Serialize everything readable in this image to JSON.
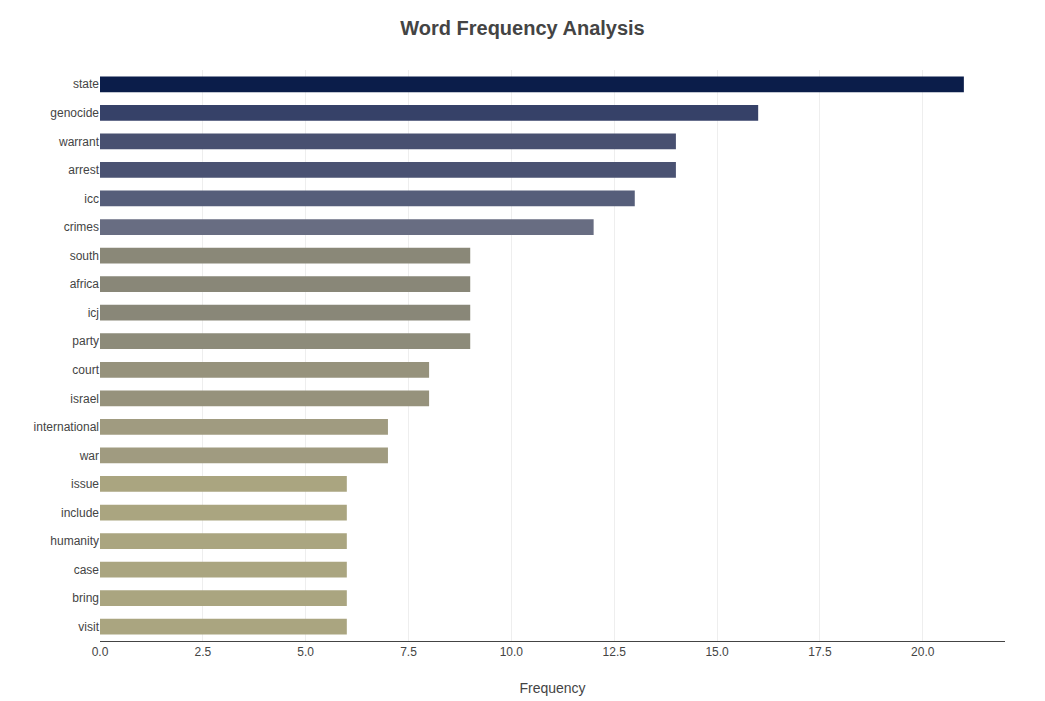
{
  "chart_data": {
    "type": "bar",
    "orientation": "horizontal",
    "title": "Word Frequency Analysis",
    "xlabel": "Frequency",
    "categories": [
      "state",
      "genocide",
      "warrant",
      "arrest",
      "icc",
      "crimes",
      "south",
      "africa",
      "icj",
      "party",
      "court",
      "israel",
      "international",
      "war",
      "issue",
      "include",
      "humanity",
      "case",
      "bring",
      "visit"
    ],
    "values": [
      21.0,
      16.0,
      14.0,
      14.0,
      13.0,
      12.0,
      9.0,
      9.0,
      9.0,
      9.0,
      8.0,
      8.0,
      7.0,
      7.0,
      6.0,
      6.0,
      6.0,
      6.0,
      6.0,
      6.0
    ],
    "colors": [
      "#0b1d4a",
      "#364168",
      "#485070",
      "#4a5272",
      "#565e7a",
      "#686d82",
      "#8a8878",
      "#898778",
      "#898778",
      "#8d8b7a",
      "#96927c",
      "#96927c",
      "#a09b80",
      "#a09b80",
      "#aaa580",
      "#aaa580",
      "#aaa580",
      "#aaa580",
      "#aaa580",
      "#aaa580"
    ],
    "xlim": [
      0,
      22
    ],
    "xticks": [
      {
        "value": 0,
        "label": "0.0"
      },
      2.5,
      {
        "value": 5,
        "label": "5.0"
      },
      7.5,
      {
        "value": 10,
        "label": "10.0"
      },
      12.5,
      {
        "value": 15,
        "label": "15.0"
      },
      17.5,
      {
        "value": 20,
        "label": "20.0"
      }
    ],
    "grid": true
  }
}
